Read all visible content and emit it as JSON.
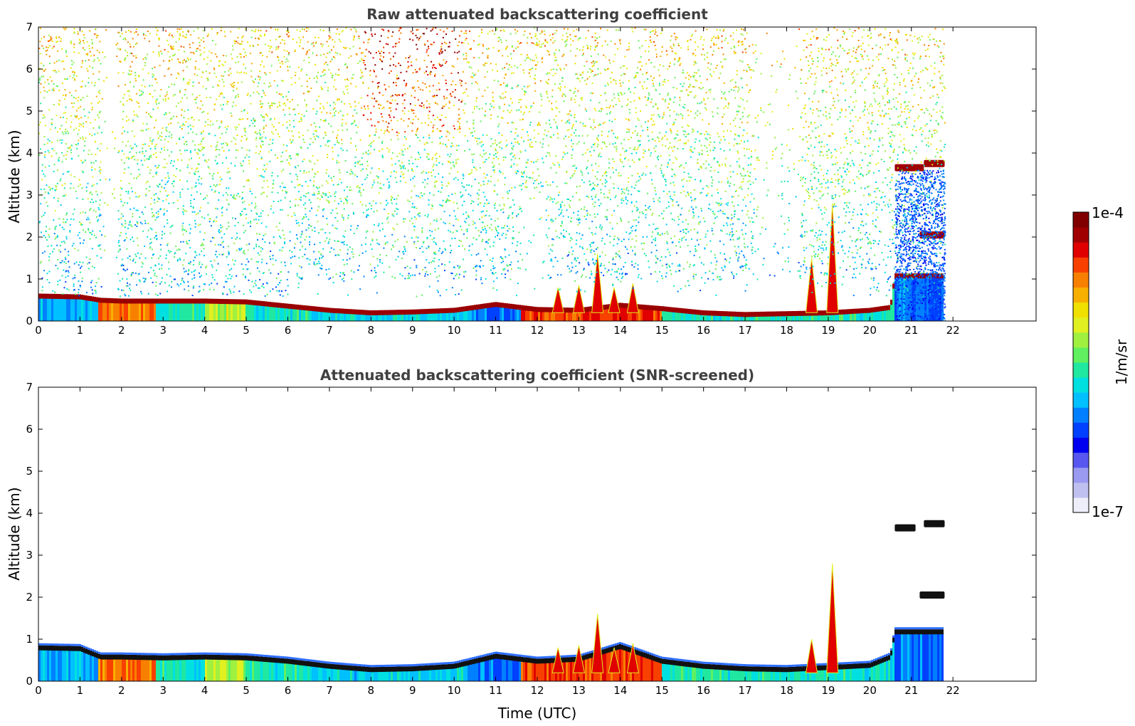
{
  "chart_data": [
    {
      "type": "heatmap",
      "title": "Raw attenuated backscattering coefficient",
      "xlabel": "",
      "ylabel": "Altitude (km)",
      "xlim": [
        0,
        24
      ],
      "ylim": [
        0,
        7
      ],
      "xticks": [
        "0",
        "1",
        "2",
        "3",
        "4",
        "5",
        "6",
        "7",
        "8",
        "9",
        "10",
        "11",
        "12",
        "13",
        "14",
        "15",
        "16",
        "17",
        "18",
        "19",
        "20",
        "21",
        "22"
      ],
      "yticks": [
        "0",
        "1",
        "2",
        "3",
        "4",
        "5",
        "6",
        "7"
      ],
      "data_end_time": 21.8,
      "boundary_layer_top_km": [
        [
          0,
          0.62
        ],
        [
          1,
          0.6
        ],
        [
          1.5,
          0.52
        ],
        [
          2,
          0.5
        ],
        [
          3,
          0.5
        ],
        [
          4,
          0.5
        ],
        [
          5,
          0.48
        ],
        [
          6,
          0.38
        ],
        [
          7,
          0.28
        ],
        [
          8,
          0.22
        ],
        [
          9,
          0.24
        ],
        [
          10,
          0.28
        ],
        [
          11,
          0.42
        ],
        [
          12,
          0.3
        ],
        [
          13,
          0.28
        ],
        [
          14,
          0.4
        ],
        [
          15,
          0.32
        ],
        [
          16,
          0.22
        ],
        [
          17,
          0.18
        ],
        [
          18,
          0.2
        ],
        [
          19,
          0.22
        ],
        [
          20,
          0.28
        ],
        [
          20.5,
          0.35
        ],
        [
          20.6,
          1.1
        ],
        [
          21.8,
          1.1
        ]
      ],
      "cloud_layers": [
        {
          "start": 20.6,
          "end": 21.3,
          "altitude_km": 3.65
        },
        {
          "start": 21.3,
          "end": 21.8,
          "altitude_km": 3.75
        },
        {
          "start": 21.2,
          "end": 21.8,
          "altitude_km": 2.05
        }
      ],
      "plumes": [
        {
          "time": 12.5,
          "top_km": 0.8
        },
        {
          "time": 13.0,
          "top_km": 0.85
        },
        {
          "time": 13.45,
          "top_km": 1.6
        },
        {
          "time": 13.85,
          "top_km": 0.8
        },
        {
          "time": 14.3,
          "top_km": 0.9
        },
        {
          "time": 18.6,
          "top_km": 1.5
        },
        {
          "time": 19.1,
          "top_km": 2.8
        }
      ],
      "noise_profile": "raw: noisy signal increasing with altitude, strongest near 8-10 UTC"
    },
    {
      "type": "heatmap",
      "title": "Attenuated backscattering coefficient (SNR-screened)",
      "xlabel": "Time (UTC)",
      "ylabel": "Altitude (km)",
      "xlim": [
        0,
        24
      ],
      "ylim": [
        0,
        7
      ],
      "xticks": [
        "0",
        "1",
        "2",
        "3",
        "4",
        "5",
        "6",
        "7",
        "8",
        "9",
        "10",
        "11",
        "12",
        "13",
        "14",
        "15",
        "16",
        "17",
        "18",
        "19",
        "20",
        "21",
        "22"
      ],
      "yticks": [
        "0",
        "1",
        "2",
        "3",
        "4",
        "5",
        "6",
        "7"
      ],
      "data_end_time": 21.8,
      "boundary_layer_top_km": [
        [
          0,
          0.82
        ],
        [
          1,
          0.8
        ],
        [
          1.5,
          0.6
        ],
        [
          2,
          0.6
        ],
        [
          3,
          0.58
        ],
        [
          4,
          0.6
        ],
        [
          5,
          0.58
        ],
        [
          6,
          0.5
        ],
        [
          7,
          0.38
        ],
        [
          8,
          0.3
        ],
        [
          9,
          0.32
        ],
        [
          10,
          0.38
        ],
        [
          10.5,
          0.5
        ],
        [
          11,
          0.62
        ],
        [
          12,
          0.5
        ],
        [
          13,
          0.55
        ],
        [
          14,
          0.85
        ],
        [
          15,
          0.5
        ],
        [
          16,
          0.38
        ],
        [
          17,
          0.32
        ],
        [
          18,
          0.3
        ],
        [
          19,
          0.35
        ],
        [
          20,
          0.4
        ],
        [
          20.5,
          0.6
        ],
        [
          20.6,
          1.2
        ],
        [
          21.8,
          1.2
        ]
      ],
      "cloud_layers": [
        {
          "start": 20.6,
          "end": 21.1,
          "altitude_km": 3.65
        },
        {
          "start": 21.3,
          "end": 21.8,
          "altitude_km": 3.75
        },
        {
          "start": 21.2,
          "end": 21.8,
          "altitude_km": 2.05
        }
      ],
      "plumes": [
        {
          "time": 12.5,
          "top_km": 0.8
        },
        {
          "time": 13.0,
          "top_km": 0.85
        },
        {
          "time": 13.45,
          "top_km": 1.6
        },
        {
          "time": 13.85,
          "top_km": 0.8
        },
        {
          "time": 14.3,
          "top_km": 0.9
        },
        {
          "time": 18.6,
          "top_km": 1.0
        },
        {
          "time": 19.1,
          "top_km": 2.8
        }
      ],
      "noise_profile": "screened: noise removed above the layers"
    }
  ],
  "colorbar": {
    "max_label": "1e-4",
    "min_label": "1e-7",
    "unit_label": "1/m/sr",
    "colors": [
      "#eeeefb",
      "#c0c0f0",
      "#9a9af0",
      "#5858f0",
      "#0000f0",
      "#0040ff",
      "#0080ff",
      "#00c0ff",
      "#00e0e0",
      "#20e8a0",
      "#60f060",
      "#a0f040",
      "#e0f020",
      "#f0e000",
      "#f8b000",
      "#f88000",
      "#f84000",
      "#e00000",
      "#a00000",
      "#800000"
    ]
  }
}
